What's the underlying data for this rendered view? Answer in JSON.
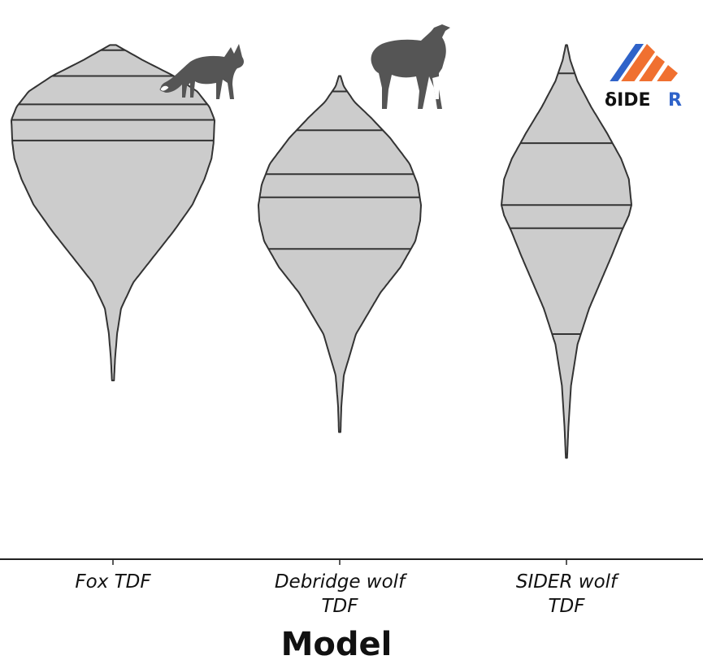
{
  "chart_data": {
    "type": "violin",
    "title": "",
    "xlabel": "Model",
    "ylabel": "",
    "ylim": [
      0,
      100
    ],
    "grid": false,
    "legend": "none",
    "fill_color": "#cccccc",
    "line_color": "#333333",
    "categories": [
      "Fox TDF",
      "Debridge wolf TDF",
      "SIDER wolf TDF"
    ],
    "category_lines": [
      [
        "Fox TDF"
      ],
      [
        "Debridge wolf",
        "TDF"
      ],
      [
        "SIDER wolf",
        "TDF"
      ]
    ],
    "series": [
      {
        "min": 31,
        "max": 96,
        "quartiles": [
          77.5,
          81.5,
          84.5,
          90.0,
          95.0
        ],
        "quartile_probs": [
          0.025,
          0.25,
          0.5,
          0.75,
          0.975
        ],
        "profile": [
          [
            31,
            0.01
          ],
          [
            35,
            0.02
          ],
          [
            40,
            0.04
          ],
          [
            45,
            0.08
          ],
          [
            50,
            0.2
          ],
          [
            55,
            0.4
          ],
          [
            60,
            0.6
          ],
          [
            65,
            0.78
          ],
          [
            70,
            0.9
          ],
          [
            74,
            0.97
          ],
          [
            77,
            0.99
          ],
          [
            81.5,
            1.0
          ],
          [
            84,
            0.95
          ],
          [
            87,
            0.83
          ],
          [
            90,
            0.6
          ],
          [
            93,
            0.3
          ],
          [
            95,
            0.12
          ],
          [
            96,
            0.03
          ]
        ]
      },
      {
        "min": 21,
        "max": 90,
        "quartiles": [
          56.5,
          66.5,
          71.0,
          79.5,
          87.0
        ],
        "quartile_probs": [
          0.025,
          0.25,
          0.5,
          0.75,
          0.975
        ],
        "profile": [
          [
            21,
            0.01
          ],
          [
            26,
            0.02
          ],
          [
            32,
            0.05
          ],
          [
            40,
            0.2
          ],
          [
            48,
            0.5
          ],
          [
            53,
            0.75
          ],
          [
            58,
            0.93
          ],
          [
            62,
            0.99
          ],
          [
            65,
            1.0
          ],
          [
            69,
            0.96
          ],
          [
            73,
            0.86
          ],
          [
            78,
            0.62
          ],
          [
            82,
            0.38
          ],
          [
            85,
            0.18
          ],
          [
            88,
            0.05
          ],
          [
            90,
            0.01
          ]
        ]
      },
      {
        "min": 16,
        "max": 96,
        "quartiles": [
          40.0,
          60.5,
          65.0,
          77.0,
          90.5
        ],
        "quartile_probs": [
          0.025,
          0.25,
          0.5,
          0.75,
          0.975
        ],
        "profile": [
          [
            16,
            0.01
          ],
          [
            22,
            0.03
          ],
          [
            30,
            0.07
          ],
          [
            38,
            0.17
          ],
          [
            45,
            0.35
          ],
          [
            50,
            0.52
          ],
          [
            55,
            0.69
          ],
          [
            60,
            0.85
          ],
          [
            63,
            0.96
          ],
          [
            65,
            1.0
          ],
          [
            70,
            0.96
          ],
          [
            74,
            0.84
          ],
          [
            79,
            0.62
          ],
          [
            84,
            0.38
          ],
          [
            89,
            0.17
          ],
          [
            93,
            0.06
          ],
          [
            96,
            0.01
          ]
        ]
      }
    ]
  },
  "logos": {
    "sider_text": "δIDE",
    "sider_r": "R"
  }
}
